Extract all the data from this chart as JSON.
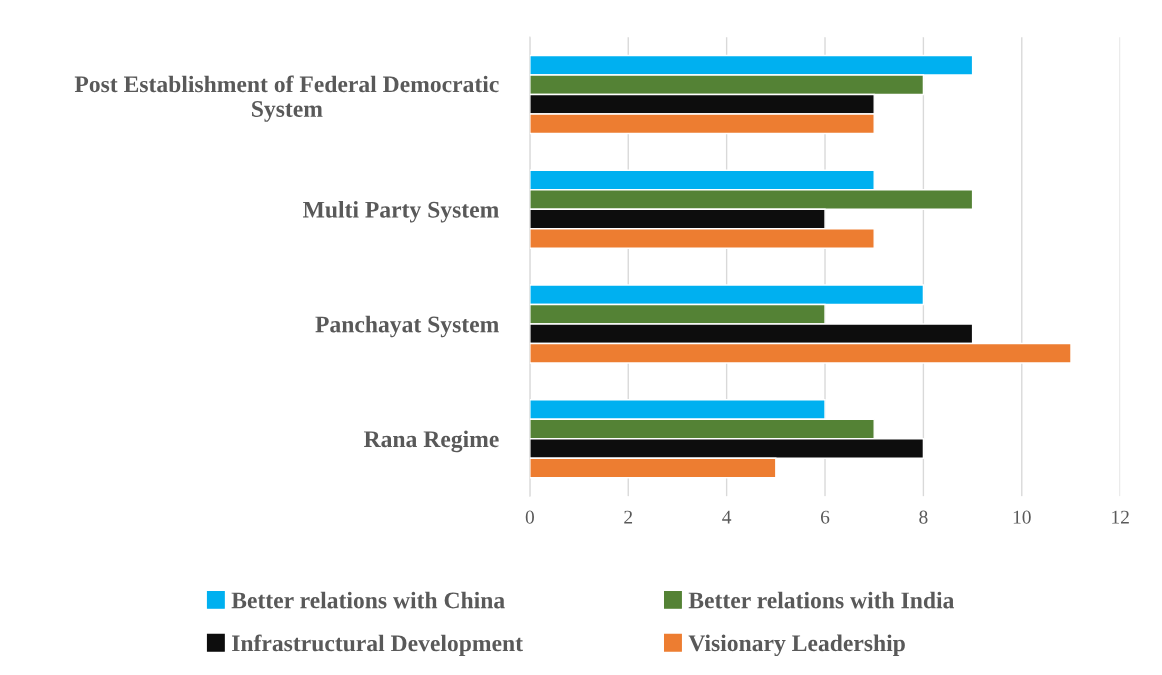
{
  "chart_data": {
    "type": "bar",
    "orientation": "horizontal",
    "categories": [
      "Post Establishment of Federal Democratic System",
      "Multi Party System",
      "Panchayat System",
      "Rana Regime"
    ],
    "series": [
      {
        "name": "Better relations with China",
        "color": "#00b0f0",
        "values": [
          9,
          7,
          8,
          6
        ]
      },
      {
        "name": "Better relations with India",
        "color": "#548235",
        "values": [
          8,
          9,
          6,
          7
        ]
      },
      {
        "name": "Infrastructural Development",
        "color": "#0d0d0d",
        "values": [
          7,
          6,
          9,
          8
        ]
      },
      {
        "name": "Visionary Leadership",
        "color": "#ed7d31",
        "values": [
          7,
          7,
          11,
          5
        ]
      }
    ],
    "xlim": [
      0,
      12
    ],
    "xticks": [
      0,
      2,
      4,
      6,
      8,
      10,
      12
    ],
    "grid": "x",
    "legend": "bottom"
  }
}
